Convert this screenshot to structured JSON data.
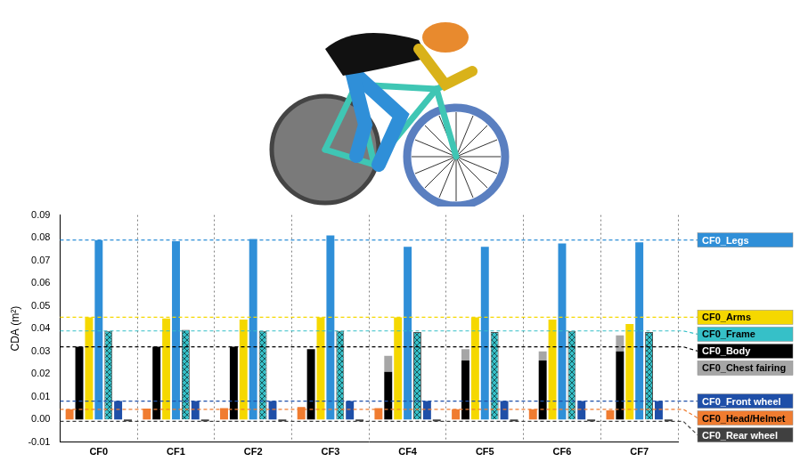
{
  "chart_data": {
    "type": "bar",
    "y_label": "CDA (m²)",
    "categories": [
      "CF0",
      "CF1",
      "CF2",
      "CF3",
      "CF4",
      "CF5",
      "CF6",
      "CF7"
    ],
    "ylim": [
      -0.01,
      0.09
    ],
    "yticks": [
      -0.01,
      {
        "value": 0,
        "label": "0.00"
      },
      0.01,
      0.02,
      0.03,
      0.04,
      0.05,
      0.06,
      0.07,
      0.08,
      0.09
    ],
    "grid": true,
    "legend": "right",
    "series": [
      {
        "name": "CF0_Head/Helmet",
        "color": "#f07c30",
        "values": [
          0.0045,
          0.0048,
          0.005,
          0.0055,
          0.005,
          0.0045,
          0.0045,
          0.004
        ]
      },
      {
        "name": "CF0_Body",
        "color": "#000000",
        "values": [
          0.032,
          0.032,
          0.032,
          0.031,
          0.021,
          0.026,
          0.026,
          0.03
        ]
      },
      {
        "name": "CF0_Chest fairing",
        "color": "#a6a6a6",
        "stacked": true,
        "values": [
          null,
          null,
          null,
          null,
          0.007,
          0.005,
          0.004,
          0.007
        ]
      },
      {
        "name": "CF0_Arms",
        "color": "#f5d800",
        "values": [
          0.045,
          0.0445,
          0.044,
          0.045,
          0.045,
          0.045,
          0.044,
          0.042
        ]
      },
      {
        "name": "CF0_Legs",
        "color": "#2f8fd8",
        "values": [
          0.079,
          0.0785,
          0.0795,
          0.081,
          0.076,
          0.076,
          0.0775,
          0.078
        ]
      },
      {
        "name": "CF0_Frame",
        "color": "#36c0c8",
        "marker": "hatch",
        "values": [
          0.039,
          0.0395,
          0.039,
          0.039,
          0.0385,
          0.0385,
          0.039,
          0.0385
        ]
      },
      {
        "name": "CF0_Front wheel",
        "color": "#1f4fa8",
        "values": [
          0.0081,
          0.0081,
          0.0081,
          0.0081,
          0.0081,
          0.0081,
          0.0081,
          0.0081
        ]
      },
      {
        "name": "CF0_Rear wheel",
        "color": "#404040",
        "values": [
          -0.0008,
          -0.0008,
          -0.0008,
          -0.0008,
          -0.0008,
          -0.0008,
          -0.0008,
          -0.0008
        ]
      }
    ]
  }
}
